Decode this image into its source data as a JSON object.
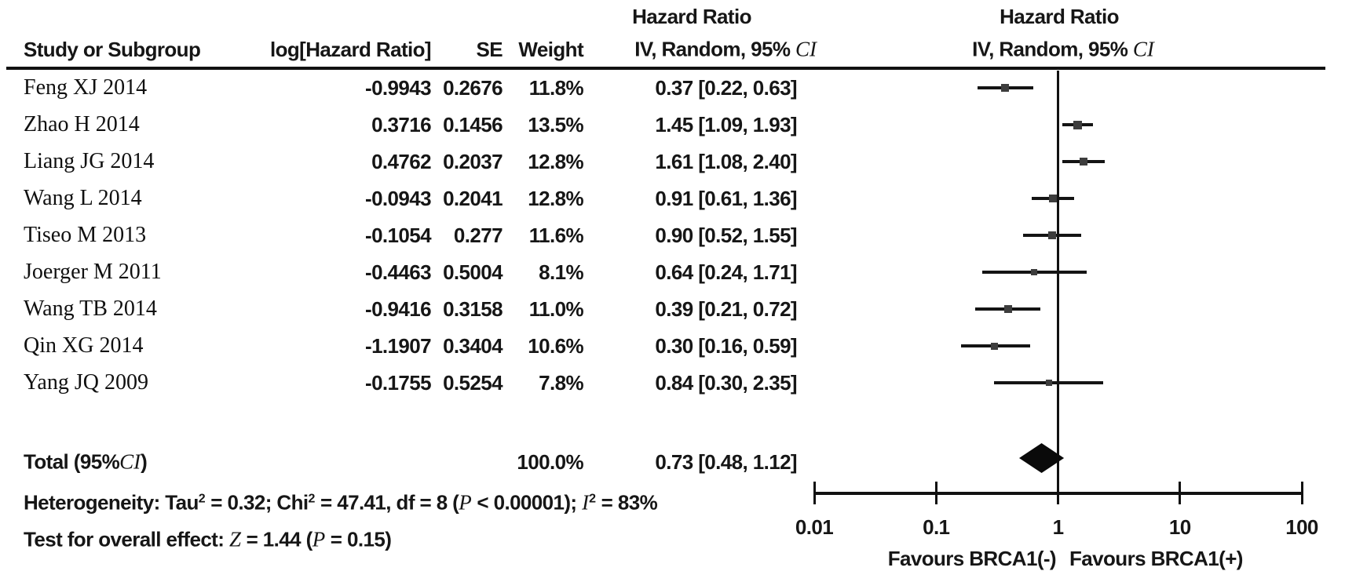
{
  "header": {
    "col_study": "Study or Subgroup",
    "col_log_hr": "log[Hazard Ratio]",
    "col_se": "SE",
    "col_weight": "Weight",
    "table_effect_title": "Hazard Ratio",
    "plot_effect_title": "Hazard Ratio",
    "method_segments": [
      {
        "t": "IV, Random, 95% ",
        "s": "b"
      },
      {
        "t": "CI",
        "s": "i"
      }
    ]
  },
  "chart_data": {
    "type": "forest",
    "effect_measure": "Hazard Ratio",
    "model": "IV, Random, 95% CI",
    "x_scale": "log",
    "x_ticks": [
      0.01,
      0.1,
      1,
      10,
      100
    ],
    "x_tick_labels": [
      "0.01",
      "0.1",
      "1",
      "10",
      "100"
    ],
    "axis_range": [
      0.01,
      100
    ],
    "studies": [
      {
        "name": "Feng XJ 2014",
        "log_hr_text": "-0.9943",
        "se_text": "0.2676",
        "weight_text": "11.8%",
        "ci_text": "0.37 [0.22, 0.63]",
        "hr": 0.37,
        "ci_low": 0.22,
        "ci_high": 0.63,
        "weight_pct": 11.8
      },
      {
        "name": "Zhao H 2014",
        "log_hr_text": "0.3716",
        "se_text": "0.1456",
        "weight_text": "13.5%",
        "ci_text": "1.45 [1.09, 1.93]",
        "hr": 1.45,
        "ci_low": 1.09,
        "ci_high": 1.93,
        "weight_pct": 13.5
      },
      {
        "name": "Liang JG 2014",
        "log_hr_text": "0.4762",
        "se_text": "0.2037",
        "weight_text": "12.8%",
        "ci_text": "1.61 [1.08, 2.40]",
        "hr": 1.61,
        "ci_low": 1.08,
        "ci_high": 2.4,
        "weight_pct": 12.8
      },
      {
        "name": "Wang L 2014",
        "log_hr_text": "-0.0943",
        "se_text": "0.2041",
        "weight_text": "12.8%",
        "ci_text": "0.91 [0.61, 1.36]",
        "hr": 0.91,
        "ci_low": 0.61,
        "ci_high": 1.36,
        "weight_pct": 12.8
      },
      {
        "name": "Tiseo M 2013",
        "log_hr_text": "-0.1054",
        "se_text": "0.277",
        "weight_text": "11.6%",
        "ci_text": "0.90 [0.52, 1.55]",
        "hr": 0.9,
        "ci_low": 0.52,
        "ci_high": 1.55,
        "weight_pct": 11.6
      },
      {
        "name": "Joerger M 2011",
        "log_hr_text": "-0.4463",
        "se_text": "0.5004",
        "weight_text": "8.1%",
        "ci_text": "0.64 [0.24, 1.71]",
        "hr": 0.64,
        "ci_low": 0.24,
        "ci_high": 1.71,
        "weight_pct": 8.1
      },
      {
        "name": "Wang TB 2014",
        "log_hr_text": "-0.9416",
        "se_text": "0.3158",
        "weight_text": "11.0%",
        "ci_text": "0.39 [0.21, 0.72]",
        "hr": 0.39,
        "ci_low": 0.21,
        "ci_high": 0.72,
        "weight_pct": 11.0
      },
      {
        "name": "Qin XG 2014",
        "log_hr_text": "-1.1907",
        "se_text": "0.3404",
        "weight_text": "10.6%",
        "ci_text": "0.30 [0.16, 0.59]",
        "hr": 0.3,
        "ci_low": 0.16,
        "ci_high": 0.59,
        "weight_pct": 10.6
      },
      {
        "name": "Yang JQ 2009",
        "log_hr_text": "-0.1755",
        "se_text": "0.5254",
        "weight_text": "7.8%",
        "ci_text": "0.84 [0.30, 2.35]",
        "hr": 0.84,
        "ci_low": 0.3,
        "ci_high": 2.35,
        "weight_pct": 7.8
      }
    ],
    "total": {
      "label_segments": [
        {
          "t": "Total (95%",
          "s": "b"
        },
        {
          "t": "CI",
          "s": "i"
        },
        {
          "t": ")",
          "s": "b"
        }
      ],
      "weight_text": "100.0%",
      "ci_text": "0.73 [0.48, 1.12]",
      "hr": 0.73,
      "ci_low": 0.48,
      "ci_high": 1.12,
      "weight_pct": 100.0
    }
  },
  "footer": {
    "heterogeneity_segments": [
      {
        "t": "Heterogeneity: Tau",
        "s": "b"
      },
      {
        "t": "2",
        "s": "bsup"
      },
      {
        "t": " = 0.32; Chi",
        "s": "b"
      },
      {
        "t": "2",
        "s": "bsup"
      },
      {
        "t": " = 47.41, df = 8 (",
        "s": "b"
      },
      {
        "t": "P",
        "s": "i"
      },
      {
        "t": " < 0.00001); ",
        "s": "b"
      },
      {
        "t": "I",
        "s": "i"
      },
      {
        "t": "2",
        "s": "bsup"
      },
      {
        "t": " = 83%",
        "s": "b"
      }
    ],
    "overall_effect_segments": [
      {
        "t": "Test for overall effect: ",
        "s": "b"
      },
      {
        "t": "Z",
        "s": "i"
      },
      {
        "t": " = 1.44 (",
        "s": "b"
      },
      {
        "t": "P",
        "s": "i"
      },
      {
        "t": " = 0.15)",
        "s": "b"
      }
    ]
  },
  "axis_labels": {
    "favours_left": "Favours BRCA1(-)",
    "favours_right": "Favours BRCA1(+)"
  },
  "colors": {
    "text": "#161616",
    "line": "#111111",
    "square": "#3d3d3d",
    "diamond": "#0a0a0a",
    "background": "#ffffff"
  }
}
